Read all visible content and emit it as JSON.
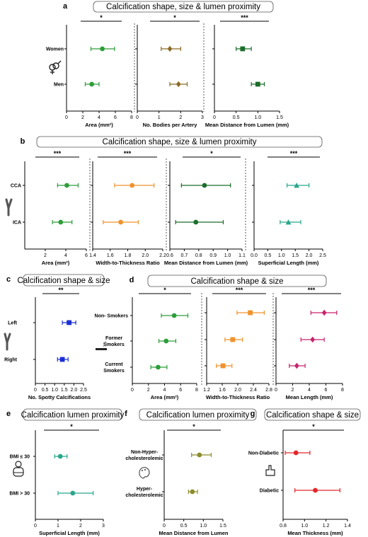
{
  "panels": [
    {
      "id": "a",
      "letter": "a",
      "title": "Calcification shape, size & lumen proximity"
    },
    {
      "id": "b",
      "letter": "b",
      "title": "Calcification shape, size & lumen proximity"
    },
    {
      "id": "c",
      "letter": "c",
      "title": "Calcification shape & size"
    },
    {
      "id": "d",
      "letter": "d",
      "title": "Calcification shape & size"
    },
    {
      "id": "e",
      "letter": "e",
      "title": "Calcification lumen proximity"
    },
    {
      "id": "f",
      "letter": "f",
      "title": "Calcification lumen proximity"
    },
    {
      "id": "g",
      "letter": "g",
      "title": "Calcification shape & size"
    }
  ],
  "icons": {
    "a": "sex-symbols-icon",
    "b": "carotid-bifurcation-icon",
    "c": "carotid-bifurcation-icon",
    "d": "cigarette-icon",
    "e": "person-icon",
    "f": "palette-icon",
    "g": "hand-icon"
  },
  "chart_data": [
    {
      "panel": "a",
      "subplot": 1,
      "type": "scatter",
      "categories": [
        "Women",
        "Men"
      ],
      "xlabel": "Area (mm²)",
      "xlim": [
        0,
        8
      ],
      "xticks": [
        0,
        2,
        4,
        6,
        8
      ],
      "xtick_labels": [
        "0",
        "2",
        "4",
        "6",
        "8"
      ],
      "series": [
        {
          "values": [
            4.4,
            3.1
          ],
          "err_low": [
            3.0,
            2.3
          ],
          "err_high": [
            5.9,
            4.0
          ]
        }
      ],
      "marker": "circle",
      "color": "#2e9d3a",
      "significance": "*"
    },
    {
      "panel": "a",
      "subplot": 2,
      "type": "scatter",
      "categories": [
        "Women",
        "Men"
      ],
      "xlabel": "No. Bodies per Artery",
      "xlim": [
        0,
        3
      ],
      "xticks": [
        0,
        1,
        2,
        3
      ],
      "xtick_labels": [
        "0",
        "1",
        "2",
        "3"
      ],
      "series": [
        {
          "values": [
            1.5,
            1.9
          ],
          "err_low": [
            1.1,
            1.5
          ],
          "err_high": [
            2.0,
            2.3
          ]
        }
      ],
      "marker": "diamond",
      "color": "#8b6a24",
      "significance": "*"
    },
    {
      "panel": "a",
      "subplot": 3,
      "type": "scatter",
      "categories": [
        "Women",
        "Men"
      ],
      "xlabel": "Mean Distance from Lumen (mm)",
      "xlim": [
        0,
        1.5
      ],
      "xticks": [
        0,
        0.5,
        1.0,
        1.5
      ],
      "xtick_labels": [
        "0",
        "0.5",
        "1.0",
        "1.5"
      ],
      "series": [
        {
          "values": [
            0.65,
            1.0
          ],
          "err_low": [
            0.5,
            0.85
          ],
          "err_high": [
            0.85,
            1.15
          ]
        }
      ],
      "marker": "square",
      "color": "#1b6d2a",
      "significance": "***"
    },
    {
      "panel": "b",
      "subplot": 1,
      "type": "scatter",
      "categories": [
        "CCA",
        "ICA"
      ],
      "xlabel": "Area (mm²)",
      "xlim": [
        0,
        6
      ],
      "xticks": [
        2,
        4,
        6
      ],
      "xtick_labels": [
        "2",
        "4",
        "6"
      ],
      "series": [
        {
          "values": [
            4.1,
            3.5
          ],
          "err_low": [
            3.2,
            2.7
          ],
          "err_high": [
            5.2,
            4.6
          ]
        }
      ],
      "marker": "circle",
      "color": "#2e9d3a",
      "significance": "***"
    },
    {
      "panel": "b",
      "subplot": 2,
      "type": "scatter",
      "categories": [
        "CCA",
        "ICA"
      ],
      "xlabel": "Width-to-Thickness Ratio",
      "xlim": [
        1.4,
        2.2
      ],
      "xticks": [
        1.4,
        1.6,
        1.8,
        2.0,
        2.2
      ],
      "xtick_labels": [
        "1.4",
        "1.6",
        "1.8",
        "2.0",
        "2.2"
      ],
      "series": [
        {
          "values": [
            1.85,
            1.72
          ],
          "err_low": [
            1.65,
            1.52
          ],
          "err_high": [
            2.1,
            1.92
          ]
        }
      ],
      "marker": "circle",
      "color": "#f0922c",
      "significance": "***"
    },
    {
      "panel": "b",
      "subplot": 3,
      "type": "scatter",
      "categories": [
        "CCA",
        "ICA"
      ],
      "xlabel": "Mean Distance from Lumen (mm)",
      "xlim": [
        0.6,
        1.1
      ],
      "xticks": [
        0.6,
        0.7,
        0.8,
        0.9,
        1.0,
        1.1
      ],
      "xtick_labels": [
        "0.6",
        "0.7",
        "0.8",
        "0.9",
        "1.0",
        "1.1"
      ],
      "series": [
        {
          "values": [
            0.84,
            0.78
          ],
          "err_low": [
            0.68,
            0.64
          ],
          "err_high": [
            1.02,
            0.97
          ]
        }
      ],
      "marker": "circle",
      "color": "#1b6d2a",
      "significance": "*"
    },
    {
      "panel": "b",
      "subplot": 4,
      "type": "scatter",
      "categories": [
        "CCA",
        "ICA"
      ],
      "xlabel": "Superficial Length (mm)",
      "xlim": [
        0,
        2.5
      ],
      "xticks": [
        0,
        0.5,
        1.0,
        1.5,
        2.0,
        2.5
      ],
      "xtick_labels": [
        "0.0",
        "0.5",
        "1.0",
        "1.5",
        "2.0",
        "2.5"
      ],
      "series": [
        {
          "values": [
            1.55,
            1.25
          ],
          "err_low": [
            1.2,
            0.95
          ],
          "err_high": [
            2.0,
            1.7
          ]
        }
      ],
      "marker": "triangle",
      "color": "#2aa68c",
      "significance": "***"
    },
    {
      "panel": "c",
      "subplot": 1,
      "type": "scatter",
      "categories": [
        "Left",
        "Right"
      ],
      "xlabel": "No. Spotty Calcifications",
      "xlim": [
        0,
        2.5
      ],
      "xticks": [
        0,
        0.5,
        1.0,
        1.5,
        2.0,
        2.5
      ],
      "xtick_labels": [
        "0",
        "0.5",
        "1.0",
        "1.5",
        "2.0",
        "2.5"
      ],
      "series": [
        {
          "values": [
            1.75,
            1.4
          ],
          "err_low": [
            1.4,
            1.15
          ],
          "err_high": [
            2.1,
            1.7
          ]
        }
      ],
      "marker": "square",
      "color": "#1a2fd6",
      "significance": "**"
    },
    {
      "panel": "d",
      "subplot": 1,
      "type": "scatter",
      "categories": [
        "Non- Smokers",
        "Former Smokers",
        "Current Smokers"
      ],
      "xlabel": "Area (mm²)",
      "xlim": [
        0,
        8
      ],
      "xticks": [
        0,
        2,
        4,
        6,
        8
      ],
      "xtick_labels": [
        "0",
        "2",
        "4",
        "6",
        "8"
      ],
      "series": [
        {
          "values": [
            5.2,
            4.2,
            3.2
          ],
          "err_low": [
            3.6,
            3.3,
            2.3
          ],
          "err_high": [
            6.9,
            5.4,
            4.3
          ]
        }
      ],
      "marker": "circle",
      "color": "#2e9d3a",
      "significance": "*"
    },
    {
      "panel": "d",
      "subplot": 2,
      "type": "scatter",
      "categories": [
        "Non- Smokers",
        "Former Smokers",
        "Current Smokers"
      ],
      "xlabel": "Width-to-Thickness Ratio",
      "xlim": [
        1.2,
        2.8
      ],
      "xticks": [
        1.2,
        1.6,
        2.0,
        2.4,
        2.8
      ],
      "xtick_labels": [
        "1.2",
        "1.6",
        "2.0",
        "2.4",
        "2.8"
      ],
      "series": [
        {
          "values": [
            2.32,
            1.87,
            1.62
          ],
          "err_low": [
            1.98,
            1.67,
            1.45
          ],
          "err_high": [
            2.68,
            2.12,
            1.85
          ]
        }
      ],
      "marker": "square",
      "color": "#f0922c",
      "significance": "***"
    },
    {
      "panel": "d",
      "subplot": 3,
      "type": "scatter",
      "categories": [
        "Non- Smokers",
        "Former Smokers",
        "Current Smokers"
      ],
      "xlabel": "Mean Length (mm)",
      "xlim": [
        0,
        8
      ],
      "xticks": [
        0,
        2,
        4,
        6,
        8
      ],
      "xtick_labels": [
        "0",
        "2",
        "4",
        "6",
        "8"
      ],
      "series": [
        {
          "values": [
            5.8,
            4.4,
            2.5
          ],
          "err_low": [
            4.2,
            3.0,
            1.6
          ],
          "err_high": [
            7.3,
            5.8,
            3.5
          ]
        }
      ],
      "marker": "diamond",
      "color": "#c8236d",
      "significance": "***"
    },
    {
      "panel": "e",
      "subplot": 1,
      "type": "scatter",
      "categories": [
        "BMI ≤ 30",
        "BMI > 30"
      ],
      "xlabel": "Superficial Length (mm)",
      "xlim": [
        0,
        3
      ],
      "xticks": [
        0,
        1,
        2,
        3
      ],
      "xtick_labels": [
        "0",
        "1",
        "2",
        "3"
      ],
      "series": [
        {
          "values": [
            1.1,
            1.65
          ],
          "err_low": [
            0.85,
            1.0
          ],
          "err_high": [
            1.4,
            2.55
          ]
        }
      ],
      "marker": "circle",
      "color": "#2aa68c",
      "significance": "*"
    },
    {
      "panel": "f",
      "subplot": 1,
      "type": "scatter",
      "categories": [
        "Non-Hyper-cholesterolemic",
        "Hyper-cholesterolemic"
      ],
      "xlabel": "Mean Distance from Lumen",
      "xlim": [
        0,
        1.5
      ],
      "xticks": [
        0,
        0.5,
        1.0,
        1.5
      ],
      "xtick_labels": [
        "0",
        "0.5",
        "1.0",
        "1.5"
      ],
      "series": [
        {
          "values": [
            0.9,
            0.72
          ],
          "err_low": [
            0.7,
            0.62
          ],
          "err_high": [
            1.2,
            0.85
          ]
        }
      ],
      "marker": "circle",
      "color": "#8c8c2a",
      "significance": "*"
    },
    {
      "panel": "g",
      "subplot": 1,
      "type": "scatter",
      "categories": [
        "Non-Diabetic",
        "Diabetic"
      ],
      "xlabel": "Mean Thickness (mm)",
      "xlim": [
        0.8,
        1.4
      ],
      "xticks": [
        0.8,
        1.0,
        1.2,
        1.4
      ],
      "xtick_labels": [
        "0.8",
        "1.0",
        "1.2",
        "1.4"
      ],
      "series": [
        {
          "values": [
            0.92,
            1.1
          ],
          "err_low": [
            0.82,
            0.91
          ],
          "err_high": [
            1.05,
            1.33
          ]
        }
      ],
      "marker": "circle",
      "color": "#e4262b",
      "significance": "*"
    }
  ]
}
